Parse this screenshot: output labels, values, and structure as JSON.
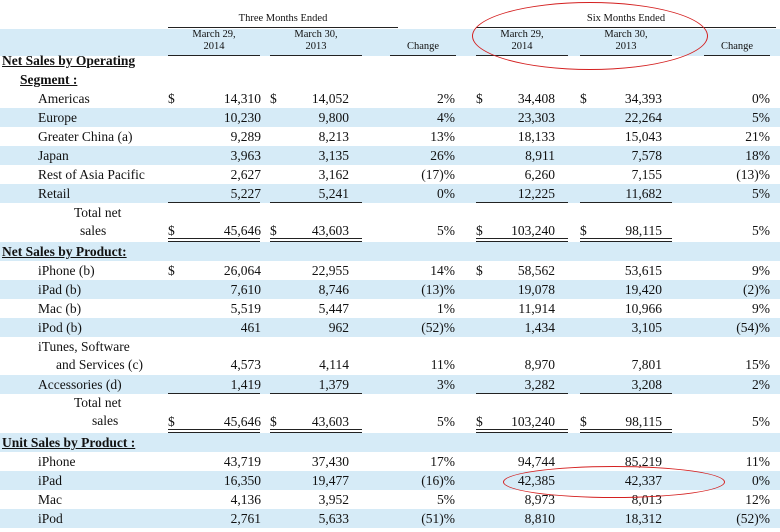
{
  "headers": {
    "three_months": "Three Months Ended",
    "six_months": "Six Months Ended",
    "col1": "March 29,\n2014",
    "col2": "March 30,\n2013",
    "col_change": "Change",
    "col4": "March 29,\n2014",
    "col5": "March 30,\n2013",
    "col_change2": "Change"
  },
  "sections": {
    "segment_title": "Net Sales by Operating",
    "segment_title2": "Segment :",
    "product_title": "Net Sales by Product:",
    "units_title": "Unit Sales by Product :"
  },
  "dollar": "$",
  "segments": [
    {
      "label": "Americas",
      "v": [
        "14,310",
        "14,052",
        "2%",
        "34,408",
        "34,393",
        "0%"
      ]
    },
    {
      "label": "Europe",
      "v": [
        "10,230",
        "9,800",
        "4%",
        "23,303",
        "22,264",
        "5%"
      ]
    },
    {
      "label": "Greater China (a)",
      "v": [
        "9,289",
        "8,213",
        "13%",
        "18,133",
        "15,043",
        "21%"
      ]
    },
    {
      "label": "Japan",
      "v": [
        "3,963",
        "3,135",
        "26%",
        "8,911",
        "7,578",
        "18%"
      ]
    },
    {
      "label": "Rest of Asia Pacific",
      "v": [
        "2,627",
        "3,162",
        "(17)%",
        "6,260",
        "7,155",
        "(13)%"
      ]
    },
    {
      "label": "Retail",
      "v": [
        "5,227",
        "5,241",
        "0%",
        "12,225",
        "11,682",
        "5%"
      ]
    }
  ],
  "segment_total": {
    "label1": "Total net",
    "label2": "sales",
    "v": [
      "45,646",
      "43,603",
      "5%",
      "103,240",
      "98,115",
      "5%"
    ]
  },
  "products": [
    {
      "label": "iPhone (b)",
      "v": [
        "26,064",
        "22,955",
        "14%",
        "58,562",
        "53,615",
        "9%"
      ]
    },
    {
      "label": "iPad (b)",
      "v": [
        "7,610",
        "8,746",
        "(13)%",
        "19,078",
        "19,420",
        "(2)%"
      ]
    },
    {
      "label": "Mac (b)",
      "v": [
        "5,519",
        "5,447",
        "1%",
        "11,914",
        "10,966",
        "9%"
      ]
    },
    {
      "label": "iPod (b)",
      "v": [
        "461",
        "962",
        "(52)%",
        "1,434",
        "3,105",
        "(54)%"
      ]
    }
  ],
  "itunes": {
    "label1": "iTunes, Software",
    "label2": "and Services (c)",
    "v": [
      "4,573",
      "4,114",
      "11%",
      "8,970",
      "7,801",
      "15%"
    ]
  },
  "accessories": {
    "label": "Accessories (d)",
    "v": [
      "1,419",
      "1,379",
      "3%",
      "3,282",
      "3,208",
      "2%"
    ]
  },
  "product_total": {
    "label1": "Total net",
    "label2": "sales",
    "v": [
      "45,646",
      "43,603",
      "5%",
      "103,240",
      "98,115",
      "5%"
    ]
  },
  "units": [
    {
      "label": "iPhone",
      "v": [
        "43,719",
        "37,430",
        "17%",
        "94,744",
        "85,219",
        "11%"
      ]
    },
    {
      "label": "iPad",
      "v": [
        "16,350",
        "19,477",
        "(16)%",
        "42,385",
        "42,337",
        "0%"
      ]
    },
    {
      "label": "Mac",
      "v": [
        "4,136",
        "3,952",
        "5%",
        "8,973",
        "8,013",
        "12%"
      ]
    },
    {
      "label": "iPod",
      "v": [
        "2,761",
        "5,633",
        "(51)%",
        "8,810",
        "18,312",
        "(52)%"
      ]
    }
  ],
  "highlight_color": "#d42020",
  "stripe_color": "#d6ebf7"
}
